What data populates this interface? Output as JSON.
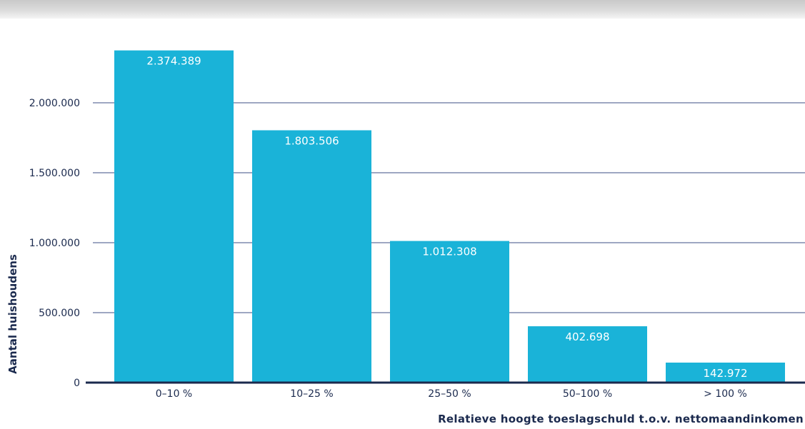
{
  "colors": {
    "bar": "#1ab3d8",
    "grid": "#3d4f86",
    "axis": "#1b2a4e",
    "text": "#1b2a4e",
    "label": "#ffffff"
  },
  "chart_data": {
    "type": "bar",
    "categories": [
      "0–10 %",
      "10–25 %",
      "25–50 %",
      "50–100 %",
      "> 100 %"
    ],
    "values": [
      2374389,
      1803506,
      1012308,
      402698,
      142972
    ],
    "data_labels": [
      "2.374.389",
      "1.803.506",
      "1.012.308",
      "402.698",
      "142.972"
    ],
    "xlabel": "Relatieve hoogte toeslagschuld t.o.v. nettomaandinkomen",
    "ylabel": "Aantal huishoudens",
    "ylim": [
      0,
      2500000
    ],
    "yticks": [
      0,
      500000,
      1000000,
      1500000,
      2000000
    ],
    "ytick_labels": [
      "0",
      "500.000",
      "1.000.000",
      "1.500.000",
      "2.000.000"
    ],
    "grid": true,
    "legend": "none"
  }
}
